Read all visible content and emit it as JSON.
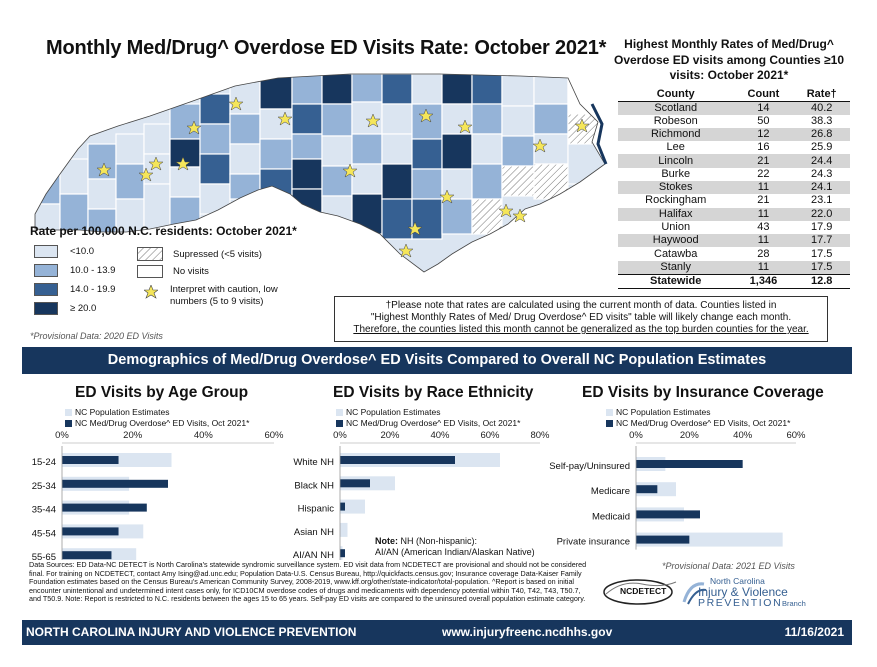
{
  "page": {
    "main_title": "Monthly Med/Drug^ Overdose ED Visits Rate: October 2021*",
    "table_title": "Highest Monthly Rates of Med/Drug^ Overdose ED visits among Counties ≥10 visits: October 2021*",
    "legend_title": "Rate per 100,000 N.C. residents: October 2021*",
    "provisional_2020": "*Provisional Data: 2020 ED Visits",
    "provisional_2021": "*Provisional Data: 2021 ED Visits",
    "band_title": "Demographics of Med/Drug Overdose^ ED Visits Compared to Overall NC Population Estimates",
    "footnote_line1": "†Please note that rates are calculated using the current month of data. Counties listed in",
    "footnote_line2": "\"Highest Monthly Rates of Med/ Drug Overdose^ ED visits\" table will likely change each month.",
    "footnote_line3": "Therefore, the counties listed this month cannot be generalized as the top burden counties for the year.",
    "note_nh_label": "Note:",
    "note_nh_1": " NH (Non-hispanic):",
    "note_nh_2": "AI/AN (American Indian/Alaskan Native)",
    "sources": "Data Sources: ED Data-NC DETECT is North Carolina's statewide syndromic surveillance system. ED visit data from NCDETECT are provisional and should not be considered final. For training on NCDETECT, contact Amy Ising@ad.unc.edu; Population Data-U.S. Census Bureau, http://quickfacts.census.gov; Insurance coverage Data-Kaiser Family Foundation estimates based on the Census Bureau's American Community Survey, 2008-2019, www.kff.org/other/state-indicator/total-population. ^Report is based on initial encounter unintentional and undetermined intent cases only, for ICD10CM overdose codes of drugs and medicaments with dependency potential within T40, T42, T43, T50.7, and T50.9. Note: Report is restricted to N.C. residents between the ages 15 to 65 years. Self-pay ED visits are compared to the uninsured overall population estimate category.",
    "footer_left": "NORTH CAROLINA INJURY AND VIOLENCE PREVENTION",
    "footer_center": "www.injuryfreenc.ncdhhs.gov",
    "footer_right": "11/16/2021",
    "logo_ncdetect": "NCDETECT",
    "logo_line1": "North Carolina",
    "logo_line2": "Injury & Violence",
    "logo_line3": "PREVENTION",
    "logo_line4": "Branch"
  },
  "map_legend": {
    "items": [
      {
        "label": "<10.0",
        "color": "#dbe5f1"
      },
      {
        "label": "10.0 - 13.9",
        "color": "#95b3d7"
      },
      {
        "label": "14.0 - 19.9",
        "color": "#366092"
      },
      {
        "label": "≥ 20.0",
        "color": "#17365d"
      }
    ],
    "suppressed": "Supressed (<5 visits)",
    "no_visits": "No visits",
    "caution_line1": "Interpret with caution, low",
    "caution_line2": "numbers (5 to 9 visits)"
  },
  "county_table": {
    "headers": [
      "County",
      "Count",
      "Rate†"
    ],
    "rows": [
      [
        "Scotland",
        "14",
        "40.2"
      ],
      [
        "Robeson",
        "50",
        "38.3"
      ],
      [
        "Richmond",
        "12",
        "26.8"
      ],
      [
        "Lee",
        "16",
        "25.9"
      ],
      [
        "Lincoln",
        "21",
        "24.4"
      ],
      [
        "Burke",
        "22",
        "24.3"
      ],
      [
        "Stokes",
        "11",
        "24.1"
      ],
      [
        "Rockingham",
        "21",
        "23.1"
      ],
      [
        "Halifax",
        "11",
        "22.0"
      ],
      [
        "Union",
        "43",
        "17.9"
      ],
      [
        "Haywood",
        "11",
        "17.7"
      ],
      [
        "Catawba",
        "28",
        "17.5"
      ],
      [
        "Stanly",
        "11",
        "17.5"
      ]
    ],
    "total": [
      "Statewide",
      "1,346",
      "12.8"
    ]
  },
  "chart_data": [
    {
      "type": "bar",
      "orientation": "horizontal",
      "title": "ED Visits by Age Group",
      "categories": [
        "15-24",
        "25-34",
        "35-44",
        "45-54",
        "55-65"
      ],
      "series": [
        {
          "name": "NC Population Estimates",
          "color": "#dbe5f1",
          "values": [
            31,
            19,
            19,
            23,
            21
          ]
        },
        {
          "name": "NC Med/Drug Overdose^ ED Visits, Oct 2021*",
          "color": "#17365d",
          "values": [
            16,
            30,
            24,
            16,
            14
          ]
        }
      ],
      "xlim": [
        0,
        60
      ],
      "ticks": [
        "0%",
        "20%",
        "40%",
        "60%"
      ]
    },
    {
      "type": "bar",
      "orientation": "horizontal",
      "title": "ED Visits by Race Ethnicity",
      "categories": [
        "White NH",
        "Black NH",
        "Hispanic",
        "Asian NH",
        "AI/AN NH"
      ],
      "series": [
        {
          "name": "NC Population Estimates",
          "color": "#dbe5f1",
          "values": [
            64,
            22,
            10,
            3,
            1
          ]
        },
        {
          "name": "NC Med/Drug Overdose^ ED Visits, Oct 2021*",
          "color": "#17365d",
          "values": [
            46,
            12,
            2,
            0,
            2
          ]
        }
      ],
      "xlim": [
        0,
        80
      ],
      "ticks": [
        "0%",
        "20%",
        "40%",
        "60%",
        "80%"
      ]
    },
    {
      "type": "bar",
      "orientation": "horizontal",
      "title": "ED Visits by Insurance Coverage",
      "categories": [
        "Self-pay/Uninsured",
        "Medicare",
        "Medicaid",
        "Private insurance"
      ],
      "series": [
        {
          "name": "NC Population Estimates",
          "color": "#dbe5f1",
          "values": [
            11,
            15,
            18,
            55
          ]
        },
        {
          "name": "NC Med/Drug Overdose^ ED Visits, Oct 2021*",
          "color": "#17365d",
          "values": [
            40,
            8,
            24,
            20
          ]
        }
      ],
      "xlim": [
        0,
        60
      ],
      "ticks": [
        "0%",
        "20%",
        "40%",
        "60%"
      ]
    }
  ]
}
